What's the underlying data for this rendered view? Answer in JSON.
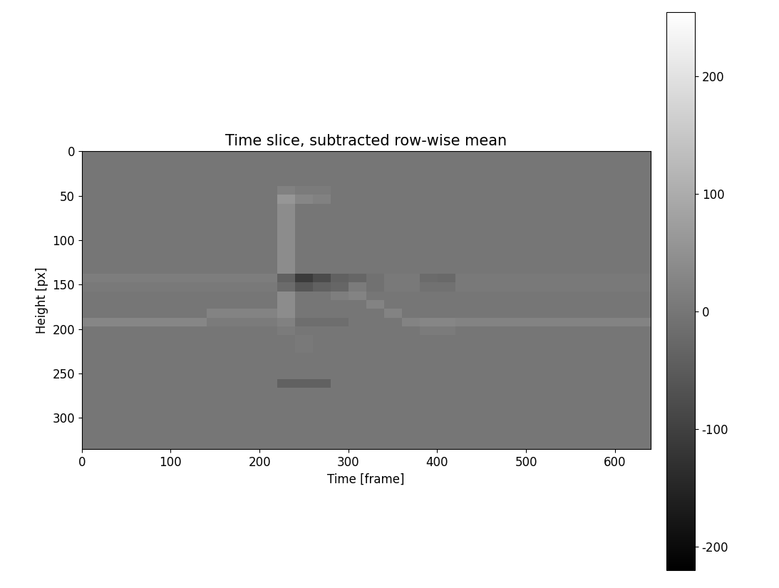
{
  "chart_data": {
    "type": "heatmap",
    "title": "Time slice, subtracted row-wise mean",
    "x_label": "Time [frame]",
    "y_label": "Height [px]",
    "xlim": [
      0,
      640
    ],
    "ylim": [
      335,
      0
    ],
    "xticks": [
      0,
      100,
      200,
      300,
      400,
      500,
      600
    ],
    "yticks": [
      0,
      50,
      100,
      150,
      200,
      250,
      300
    ],
    "color": "gray",
    "colorbar_range": [
      -220,
      255
    ],
    "colorbar_ticks": [
      -200,
      -100,
      0,
      100,
      200
    ],
    "cells": [
      [
        0,
        0,
        0,
        0,
        0,
        0,
        0,
        0,
        0,
        0,
        0,
        0,
        0,
        0,
        0,
        0,
        0,
        0,
        0,
        0,
        0,
        0,
        0,
        0,
        0,
        0,
        0,
        0,
        0,
        0,
        0,
        0
      ],
      [
        0,
        0,
        0,
        0,
        0,
        0,
        0,
        0,
        0,
        0,
        0,
        0,
        0,
        0,
        0,
        0,
        0,
        0,
        0,
        0,
        0,
        0,
        0,
        0,
        0,
        0,
        0,
        0,
        0,
        0,
        0,
        0
      ],
      [
        0,
        0,
        0,
        0,
        0,
        0,
        0,
        0,
        0,
        0,
        0,
        0,
        0,
        0,
        0,
        0,
        0,
        0,
        0,
        0,
        0,
        0,
        0,
        0,
        0,
        0,
        0,
        0,
        0,
        0,
        0,
        0
      ],
      [
        0,
        0,
        0,
        0,
        0,
        0,
        0,
        0,
        0,
        0,
        0,
        0,
        0,
        0,
        0,
        0,
        0,
        0,
        0,
        0,
        0,
        0,
        0,
        0,
        0,
        0,
        0,
        0,
        0,
        0,
        0,
        0
      ],
      [
        0,
        0,
        0,
        0,
        0,
        0,
        0,
        0,
        0,
        0,
        0,
        20,
        10,
        10,
        0,
        0,
        0,
        0,
        0,
        0,
        0,
        0,
        0,
        0,
        0,
        0,
        0,
        0,
        0,
        0,
        0,
        0
      ],
      [
        0,
        0,
        0,
        0,
        0,
        0,
        0,
        0,
        0,
        0,
        0,
        60,
        30,
        20,
        0,
        0,
        0,
        0,
        0,
        0,
        0,
        0,
        0,
        0,
        0,
        0,
        0,
        0,
        0,
        0,
        0,
        0
      ],
      [
        0,
        0,
        0,
        0,
        0,
        0,
        0,
        0,
        0,
        0,
        0,
        40,
        0,
        0,
        0,
        0,
        0,
        0,
        0,
        0,
        0,
        0,
        0,
        0,
        0,
        0,
        0,
        0,
        0,
        0,
        0,
        0
      ],
      [
        0,
        0,
        0,
        0,
        0,
        0,
        0,
        0,
        0,
        0,
        0,
        40,
        0,
        0,
        0,
        0,
        0,
        0,
        0,
        0,
        0,
        0,
        0,
        0,
        0,
        0,
        0,
        0,
        0,
        0,
        0,
        0
      ],
      [
        0,
        0,
        0,
        0,
        0,
        0,
        0,
        0,
        0,
        0,
        0,
        40,
        0,
        0,
        0,
        0,
        0,
        0,
        0,
        0,
        0,
        0,
        0,
        0,
        0,
        0,
        0,
        0,
        0,
        0,
        0,
        0
      ],
      [
        0,
        0,
        0,
        0,
        0,
        0,
        0,
        0,
        0,
        0,
        0,
        40,
        0,
        0,
        0,
        0,
        0,
        0,
        0,
        0,
        0,
        0,
        0,
        0,
        0,
        0,
        0,
        0,
        0,
        0,
        0,
        0
      ],
      [
        0,
        0,
        0,
        0,
        0,
        0,
        0,
        0,
        0,
        0,
        0,
        40,
        0,
        0,
        0,
        0,
        0,
        0,
        0,
        0,
        0,
        0,
        0,
        0,
        0,
        0,
        0,
        0,
        0,
        0,
        0,
        0
      ],
      [
        0,
        0,
        0,
        0,
        0,
        0,
        0,
        0,
        0,
        0,
        0,
        40,
        0,
        0,
        0,
        0,
        0,
        0,
        0,
        0,
        0,
        0,
        0,
        0,
        0,
        0,
        0,
        0,
        0,
        0,
        0,
        0
      ],
      [
        0,
        0,
        0,
        0,
        0,
        0,
        0,
        0,
        0,
        0,
        0,
        40,
        0,
        0,
        0,
        0,
        0,
        0,
        0,
        0,
        0,
        0,
        0,
        0,
        0,
        0,
        0,
        0,
        0,
        0,
        0,
        0
      ],
      [
        0,
        0,
        0,
        0,
        0,
        0,
        0,
        0,
        0,
        0,
        0,
        40,
        0,
        0,
        0,
        0,
        0,
        0,
        0,
        0,
        0,
        0,
        0,
        0,
        0,
        0,
        0,
        0,
        0,
        0,
        0,
        0
      ],
      [
        12,
        12,
        12,
        12,
        12,
        12,
        12,
        12,
        12,
        12,
        12,
        -40,
        -110,
        -80,
        -40,
        -30,
        -10,
        8,
        8,
        -20,
        -25,
        8,
        8,
        8,
        8,
        8,
        8,
        8,
        8,
        8,
        8,
        8
      ],
      [
        8,
        8,
        8,
        8,
        8,
        8,
        8,
        8,
        8,
        8,
        8,
        -20,
        -60,
        -40,
        -30,
        10,
        -10,
        5,
        5,
        -10,
        -10,
        5,
        5,
        5,
        5,
        5,
        5,
        5,
        5,
        5,
        5,
        5
      ],
      [
        0,
        0,
        0,
        0,
        0,
        0,
        0,
        0,
        0,
        0,
        0,
        40,
        0,
        0,
        15,
        25,
        0,
        0,
        0,
        0,
        0,
        0,
        0,
        0,
        0,
        0,
        0,
        0,
        0,
        0,
        0,
        0
      ],
      [
        0,
        0,
        0,
        0,
        0,
        0,
        0,
        0,
        0,
        0,
        0,
        40,
        0,
        0,
        0,
        0,
        25,
        0,
        0,
        0,
        0,
        0,
        0,
        0,
        0,
        0,
        0,
        0,
        0,
        0,
        0,
        0
      ],
      [
        0,
        0,
        0,
        0,
        0,
        0,
        0,
        25,
        25,
        25,
        25,
        40,
        0,
        0,
        0,
        0,
        0,
        25,
        0,
        0,
        0,
        0,
        0,
        0,
        0,
        0,
        0,
        0,
        0,
        0,
        0,
        0
      ],
      [
        30,
        30,
        30,
        30,
        30,
        30,
        30,
        10,
        10,
        10,
        10,
        20,
        -15,
        -15,
        -15,
        0,
        0,
        0,
        25,
        30,
        30,
        25,
        25,
        25,
        25,
        25,
        25,
        25,
        25,
        25,
        25,
        25
      ],
      [
        0,
        0,
        0,
        0,
        0,
        0,
        0,
        0,
        0,
        0,
        0,
        10,
        0,
        0,
        0,
        0,
        0,
        0,
        0,
        10,
        10,
        0,
        0,
        0,
        0,
        0,
        0,
        0,
        0,
        0,
        0,
        0
      ],
      [
        0,
        0,
        0,
        0,
        0,
        0,
        0,
        0,
        0,
        0,
        0,
        0,
        5,
        0,
        0,
        0,
        0,
        0,
        0,
        0,
        0,
        0,
        0,
        0,
        0,
        0,
        0,
        0,
        0,
        0,
        0,
        0
      ],
      [
        0,
        0,
        0,
        0,
        0,
        0,
        0,
        0,
        0,
        0,
        0,
        0,
        5,
        0,
        0,
        0,
        0,
        0,
        0,
        0,
        0,
        0,
        0,
        0,
        0,
        0,
        0,
        0,
        0,
        0,
        0,
        0
      ],
      [
        0,
        0,
        0,
        0,
        0,
        0,
        0,
        0,
        0,
        0,
        0,
        0,
        0,
        0,
        0,
        0,
        0,
        0,
        0,
        0,
        0,
        0,
        0,
        0,
        0,
        0,
        0,
        0,
        0,
        0,
        0,
        0
      ],
      [
        0,
        0,
        0,
        0,
        0,
        0,
        0,
        0,
        0,
        0,
        0,
        0,
        0,
        0,
        0,
        0,
        0,
        0,
        0,
        0,
        0,
        0,
        0,
        0,
        0,
        0,
        0,
        0,
        0,
        0,
        0,
        0
      ],
      [
        0,
        0,
        0,
        0,
        0,
        0,
        0,
        0,
        0,
        0,
        0,
        0,
        0,
        0,
        0,
        0,
        0,
        0,
        0,
        0,
        0,
        0,
        0,
        0,
        0,
        0,
        0,
        0,
        0,
        0,
        0,
        0
      ],
      [
        0,
        0,
        0,
        0,
        0,
        0,
        0,
        0,
        0,
        0,
        0,
        -40,
        -40,
        -40,
        0,
        0,
        0,
        0,
        0,
        0,
        0,
        0,
        0,
        0,
        0,
        0,
        0,
        0,
        0,
        0,
        0,
        0
      ],
      [
        0,
        0,
        0,
        0,
        0,
        0,
        0,
        0,
        0,
        0,
        0,
        0,
        0,
        0,
        0,
        0,
        0,
        0,
        0,
        0,
        0,
        0,
        0,
        0,
        0,
        0,
        0,
        0,
        0,
        0,
        0,
        0
      ],
      [
        0,
        0,
        0,
        0,
        0,
        0,
        0,
        0,
        0,
        0,
        0,
        0,
        0,
        0,
        0,
        0,
        0,
        0,
        0,
        0,
        0,
        0,
        0,
        0,
        0,
        0,
        0,
        0,
        0,
        0,
        0,
        0
      ],
      [
        0,
        0,
        0,
        0,
        0,
        0,
        0,
        0,
        0,
        0,
        0,
        0,
        0,
        0,
        0,
        0,
        0,
        0,
        0,
        0,
        0,
        0,
        0,
        0,
        0,
        0,
        0,
        0,
        0,
        0,
        0,
        0
      ],
      [
        0,
        0,
        0,
        0,
        0,
        0,
        0,
        0,
        0,
        0,
        0,
        0,
        0,
        0,
        0,
        0,
        0,
        0,
        0,
        0,
        0,
        0,
        0,
        0,
        0,
        0,
        0,
        0,
        0,
        0,
        0,
        0
      ],
      [
        0,
        0,
        0,
        0,
        0,
        0,
        0,
        0,
        0,
        0,
        0,
        0,
        0,
        0,
        0,
        0,
        0,
        0,
        0,
        0,
        0,
        0,
        0,
        0,
        0,
        0,
        0,
        0,
        0,
        0,
        0,
        0
      ],
      [
        0,
        0,
        0,
        0,
        0,
        0,
        0,
        0,
        0,
        0,
        0,
        0,
        0,
        0,
        0,
        0,
        0,
        0,
        0,
        0,
        0,
        0,
        0,
        0,
        0,
        0,
        0,
        0,
        0,
        0,
        0,
        0
      ],
      [
        0,
        0,
        0,
        0,
        0,
        0,
        0,
        0,
        0,
        0,
        0,
        0,
        0,
        0,
        0,
        0,
        0,
        0,
        0,
        0,
        0,
        0,
        0,
        0,
        0,
        0,
        0,
        0,
        0,
        0,
        0,
        0
      ]
    ]
  }
}
